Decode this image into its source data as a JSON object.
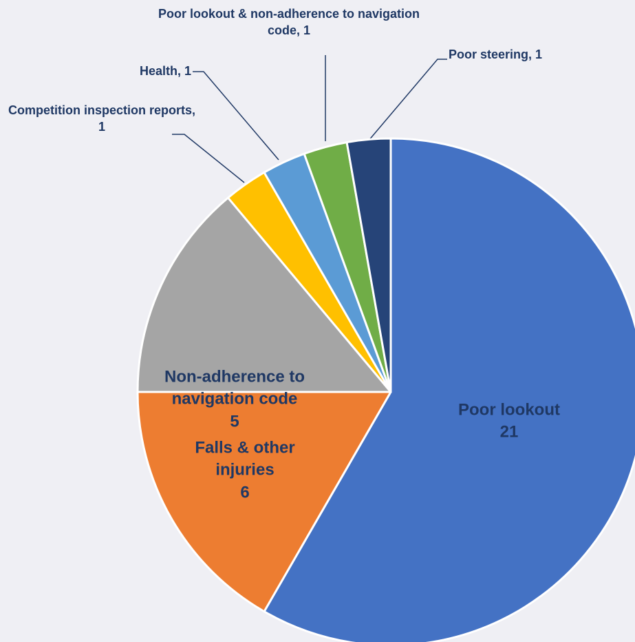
{
  "chart_data": {
    "type": "pie",
    "categories": [
      "Poor lookout",
      "Falls & other injuries",
      "Non-adherence to navigation code",
      "Competition inspection reports",
      "Health",
      "Poor lookout & non-adherence to navigation code",
      "Poor steering"
    ],
    "values": [
      21,
      6,
      5,
      1,
      1,
      1,
      1
    ],
    "colors": [
      "#4472c4",
      "#ed7d31",
      "#a5a5a5",
      "#ffc000",
      "#5b9bd5",
      "#70ad47",
      "#264478"
    ],
    "label_separator": ", ",
    "start_angle": 0,
    "direction": "clockwise"
  }
}
